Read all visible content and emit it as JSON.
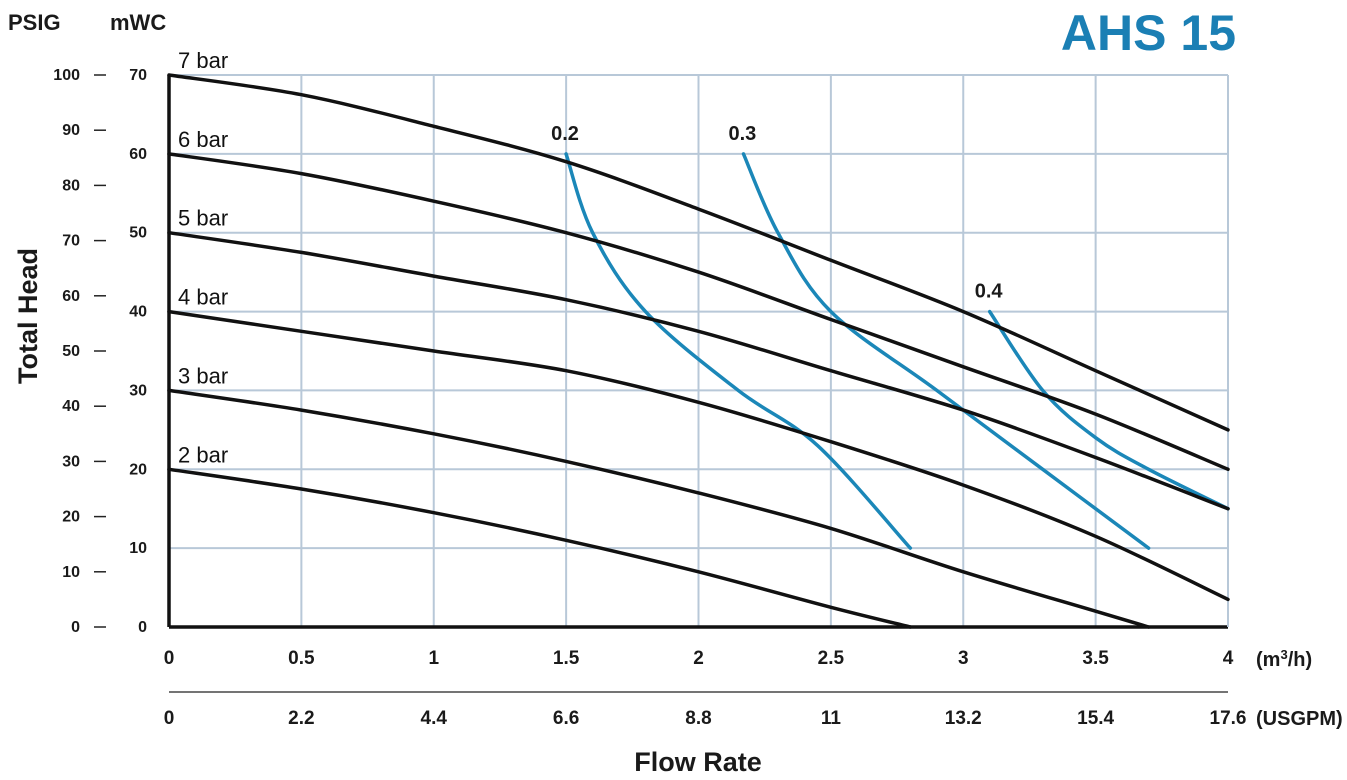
{
  "chart_data": {
    "type": "line",
    "title": "AHS 15",
    "xlabel": "Flow Rate",
    "ylabel": "Total Head",
    "x_unit_primary": "(m³/h)",
    "x_unit_primary_base": "(m",
    "x_unit_primary_sup": "3",
    "x_unit_primary_tail": "/h)",
    "x_unit_secondary": "(USGPM)",
    "y_unit_psig": "PSIG",
    "y_unit_mwc": "mWC",
    "xlim": [
      0,
      4
    ],
    "ylim": [
      0,
      70
    ],
    "x_ticks": [
      "0",
      "0.5",
      "1",
      "1.5",
      "2",
      "2.5",
      "3",
      "3.5",
      "4"
    ],
    "x_ticks_usgpm": [
      "0",
      "2.2",
      "4.4",
      "6.6",
      "8.8",
      "11",
      "13.2",
      "15.4",
      "17.6"
    ],
    "y_ticks_mwc": [
      "0",
      "10",
      "20",
      "30",
      "40",
      "50",
      "60",
      "70"
    ],
    "y_ticks_psig": [
      "0",
      "10",
      "20",
      "30",
      "40",
      "50",
      "60",
      "70",
      "80",
      "90",
      "100"
    ],
    "grid": true,
    "colors": {
      "pressure_curve": "#111111",
      "air_curve": "#1b87b8",
      "grid": "#b8c8d8",
      "title": "#1b7fb4"
    },
    "pressure_series": [
      {
        "name": "7 bar",
        "points": [
          [
            0,
            70
          ],
          [
            0.5,
            67.5
          ],
          [
            1,
            63.5
          ],
          [
            1.5,
            59
          ],
          [
            2,
            53
          ],
          [
            2.5,
            46.5
          ],
          [
            3,
            40
          ],
          [
            3.5,
            32.5
          ],
          [
            4,
            25
          ]
        ]
      },
      {
        "name": "6 bar",
        "points": [
          [
            0,
            60
          ],
          [
            0.5,
            57.5
          ],
          [
            1,
            54
          ],
          [
            1.5,
            50
          ],
          [
            2,
            45
          ],
          [
            2.5,
            39
          ],
          [
            3,
            33
          ],
          [
            3.5,
            27
          ],
          [
            4,
            20
          ]
        ]
      },
      {
        "name": "5 bar",
        "points": [
          [
            0,
            50
          ],
          [
            0.5,
            47.5
          ],
          [
            1,
            44.5
          ],
          [
            1.5,
            41.5
          ],
          [
            2,
            37.5
          ],
          [
            2.5,
            32.5
          ],
          [
            3,
            27.5
          ],
          [
            3.5,
            21.5
          ],
          [
            4,
            15
          ]
        ]
      },
      {
        "name": "4 bar",
        "points": [
          [
            0,
            40
          ],
          [
            0.5,
            37.5
          ],
          [
            1,
            35
          ],
          [
            1.5,
            32.5
          ],
          [
            2,
            28.5
          ],
          [
            2.5,
            23.5
          ],
          [
            3,
            18
          ],
          [
            3.5,
            11.5
          ],
          [
            4,
            3.5
          ]
        ]
      },
      {
        "name": "3 bar",
        "points": [
          [
            0,
            30
          ],
          [
            0.5,
            27.5
          ],
          [
            1,
            24.5
          ],
          [
            1.5,
            21
          ],
          [
            2,
            17
          ],
          [
            2.5,
            12.5
          ],
          [
            3,
            7
          ],
          [
            3.5,
            2
          ],
          [
            3.7,
            0
          ]
        ]
      },
      {
        "name": "2 bar",
        "points": [
          [
            0,
            20
          ],
          [
            0.5,
            17.5
          ],
          [
            1,
            14.5
          ],
          [
            1.5,
            11
          ],
          [
            2,
            7
          ],
          [
            2.5,
            2.5
          ],
          [
            2.8,
            0
          ]
        ]
      }
    ],
    "air_series": [
      {
        "name": "0.2",
        "points": [
          [
            1.5,
            60
          ],
          [
            1.6,
            50
          ],
          [
            1.8,
            40
          ],
          [
            2.15,
            30
          ],
          [
            2.45,
            23
          ],
          [
            2.8,
            10
          ]
        ]
      },
      {
        "name": "0.3",
        "points": [
          [
            2.17,
            60
          ],
          [
            2.3,
            50
          ],
          [
            2.5,
            40
          ],
          [
            2.9,
            30
          ],
          [
            3.3,
            20
          ],
          [
            3.7,
            10
          ]
        ]
      },
      {
        "name": "0.4",
        "points": [
          [
            3.1,
            40
          ],
          [
            3.3,
            30
          ],
          [
            3.5,
            24
          ],
          [
            3.7,
            20
          ],
          [
            4,
            15
          ]
        ]
      }
    ]
  }
}
